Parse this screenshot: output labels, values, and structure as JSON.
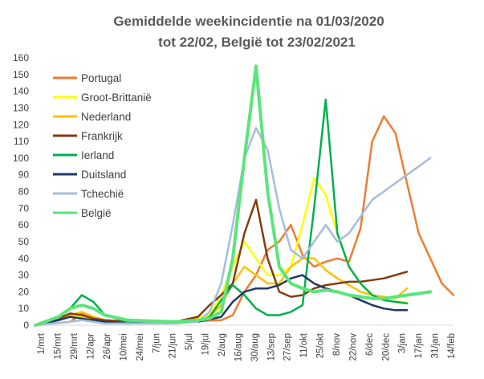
{
  "chart_data": {
    "type": "line",
    "title": [
      "Gemiddelde weekincidentie  na 01/03/2020",
      "tot 22/02, België tot 23/02/2021"
    ],
    "xlabel": "",
    "ylabel": "",
    "ylim": [
      0,
      160
    ],
    "yticks": [
      0,
      10,
      20,
      30,
      40,
      50,
      60,
      70,
      80,
      90,
      100,
      110,
      120,
      130,
      140,
      150,
      160
    ],
    "grid": false,
    "legend_position": "top-left",
    "x_tick_labels": [
      "1/mrt",
      "15/mrt",
      "29/mrt",
      "12/apr",
      "26/apr",
      "10/mei",
      "24/mei",
      "7/jun",
      "21/jun",
      "5/jul",
      "19/jul",
      "2/aug",
      "16/aug",
      "30/aug",
      "13/sep",
      "27/sep",
      "11/okt",
      "25/okt",
      "8/nov",
      "22/nov",
      "6/dec",
      "20/dec",
      "3/jan",
      "17/jan",
      "31/jan",
      "14/feb"
    ],
    "series": [
      {
        "name": "Portugal",
        "color": "#ED7D31",
        "points": [
          [
            0,
            0
          ],
          [
            3,
            2
          ],
          [
            4,
            7
          ],
          [
            5,
            5
          ],
          [
            6,
            3
          ],
          [
            8,
            2
          ],
          [
            12,
            2
          ],
          [
            16,
            3
          ],
          [
            17,
            6
          ],
          [
            18,
            20
          ],
          [
            19,
            30
          ],
          [
            20,
            45
          ],
          [
            21,
            50
          ],
          [
            22,
            60
          ],
          [
            23,
            42
          ],
          [
            24,
            35
          ],
          [
            25,
            38
          ],
          [
            26,
            40
          ],
          [
            27,
            38
          ],
          [
            28,
            58
          ],
          [
            29,
            110
          ],
          [
            30,
            125
          ],
          [
            31,
            115
          ],
          [
            32,
            85
          ],
          [
            33,
            55
          ],
          [
            34,
            40
          ],
          [
            35,
            25
          ],
          [
            36,
            18
          ]
        ]
      },
      {
        "name": "Groot-Brittanië",
        "color": "#FFFF00",
        "points": [
          [
            0,
            0
          ],
          [
            2,
            4
          ],
          [
            3,
            6
          ],
          [
            4,
            5
          ],
          [
            5,
            4
          ],
          [
            6,
            3
          ],
          [
            8,
            2
          ],
          [
            12,
            2
          ],
          [
            15,
            6
          ],
          [
            16,
            18
          ],
          [
            17,
            35
          ],
          [
            18,
            50
          ],
          [
            19,
            40
          ],
          [
            20,
            30
          ],
          [
            21,
            30
          ],
          [
            22,
            35
          ],
          [
            23,
            60
          ],
          [
            24,
            88
          ],
          [
            25,
            78
          ],
          [
            26,
            55
          ],
          [
            27,
            35
          ],
          [
            28,
            25
          ],
          [
            29,
            18
          ],
          [
            30,
            15
          ],
          [
            31,
            14
          ],
          [
            32,
            14
          ]
        ]
      },
      {
        "name": "Nederland",
        "color": "#FFC000",
        "points": [
          [
            0,
            0
          ],
          [
            2,
            4
          ],
          [
            3,
            6
          ],
          [
            4,
            8
          ],
          [
            5,
            5
          ],
          [
            6,
            3
          ],
          [
            8,
            2
          ],
          [
            14,
            2
          ],
          [
            15,
            5
          ],
          [
            16,
            12
          ],
          [
            17,
            25
          ],
          [
            18,
            35
          ],
          [
            19,
            30
          ],
          [
            20,
            25
          ],
          [
            21,
            25
          ],
          [
            22,
            35
          ],
          [
            23,
            40
          ],
          [
            24,
            40
          ],
          [
            25,
            33
          ],
          [
            26,
            28
          ],
          [
            27,
            24
          ],
          [
            28,
            20
          ],
          [
            29,
            18
          ],
          [
            30,
            17
          ],
          [
            31,
            16
          ],
          [
            32,
            22
          ]
        ]
      },
      {
        "name": "Frankrijk",
        "color": "#843C0C",
        "points": [
          [
            0,
            0
          ],
          [
            2,
            4
          ],
          [
            3,
            7
          ],
          [
            4,
            6
          ],
          [
            5,
            4
          ],
          [
            6,
            3
          ],
          [
            8,
            2
          ],
          [
            12,
            2
          ],
          [
            14,
            5
          ],
          [
            15,
            12
          ],
          [
            16,
            18
          ],
          [
            17,
            25
          ],
          [
            18,
            55
          ],
          [
            19,
            75
          ],
          [
            20,
            40
          ],
          [
            21,
            20
          ],
          [
            22,
            17
          ],
          [
            23,
            18
          ],
          [
            24,
            22
          ],
          [
            25,
            24
          ],
          [
            26,
            25
          ],
          [
            27,
            26
          ],
          [
            28,
            26
          ],
          [
            29,
            27
          ],
          [
            30,
            28
          ],
          [
            31,
            30
          ],
          [
            32,
            32
          ]
        ]
      },
      {
        "name": "Ierland",
        "color": "#00B050",
        "points": [
          [
            0,
            0
          ],
          [
            2,
            5
          ],
          [
            3,
            10
          ],
          [
            4,
            18
          ],
          [
            5,
            14
          ],
          [
            6,
            6
          ],
          [
            8,
            2
          ],
          [
            14,
            2
          ],
          [
            15,
            5
          ],
          [
            16,
            15
          ],
          [
            17,
            24
          ],
          [
            18,
            18
          ],
          [
            19,
            10
          ],
          [
            20,
            6
          ],
          [
            21,
            6
          ],
          [
            22,
            8
          ],
          [
            23,
            12
          ],
          [
            24,
            70
          ],
          [
            25,
            135
          ],
          [
            26,
            55
          ],
          [
            27,
            35
          ],
          [
            28,
            25
          ],
          [
            29,
            18
          ],
          [
            30,
            15
          ],
          [
            31,
            14
          ],
          [
            32,
            13
          ]
        ]
      },
      {
        "name": "Duitsland",
        "color": "#203864",
        "points": [
          [
            0,
            0
          ],
          [
            2,
            3
          ],
          [
            3,
            5
          ],
          [
            4,
            4
          ],
          [
            5,
            3
          ],
          [
            6,
            2
          ],
          [
            8,
            1
          ],
          [
            14,
            2
          ],
          [
            16,
            5
          ],
          [
            17,
            14
          ],
          [
            18,
            20
          ],
          [
            19,
            22
          ],
          [
            20,
            22
          ],
          [
            21,
            24
          ],
          [
            22,
            28
          ],
          [
            23,
            30
          ],
          [
            24,
            25
          ],
          [
            25,
            22
          ],
          [
            26,
            20
          ],
          [
            27,
            18
          ],
          [
            28,
            15
          ],
          [
            29,
            12
          ],
          [
            30,
            10
          ],
          [
            31,
            9
          ],
          [
            32,
            9
          ]
        ]
      },
      {
        "name": "Tchechië",
        "color": "#A6BDDB",
        "points": [
          [
            0,
            0
          ],
          [
            3,
            2
          ],
          [
            4,
            3
          ],
          [
            5,
            2
          ],
          [
            6,
            1
          ],
          [
            8,
            1
          ],
          [
            12,
            1
          ],
          [
            14,
            2
          ],
          [
            15,
            8
          ],
          [
            16,
            25
          ],
          [
            17,
            60
          ],
          [
            18,
            100
          ],
          [
            19,
            118
          ],
          [
            20,
            105
          ],
          [
            21,
            70
          ],
          [
            22,
            45
          ],
          [
            23,
            40
          ],
          [
            24,
            50
          ],
          [
            25,
            60
          ],
          [
            26,
            50
          ],
          [
            27,
            55
          ],
          [
            28,
            65
          ],
          [
            29,
            75
          ],
          [
            30,
            80
          ],
          [
            31,
            85
          ],
          [
            32,
            90
          ],
          [
            33,
            95
          ],
          [
            34,
            100
          ]
        ]
      },
      {
        "name": "België",
        "color": "#5BE57A",
        "points": [
          [
            0,
            0
          ],
          [
            2,
            5
          ],
          [
            3,
            10
          ],
          [
            4,
            12
          ],
          [
            5,
            10
          ],
          [
            6,
            6
          ],
          [
            8,
            3
          ],
          [
            12,
            2
          ],
          [
            14,
            3
          ],
          [
            15,
            4
          ],
          [
            16,
            8
          ],
          [
            17,
            40
          ],
          [
            18,
            100
          ],
          [
            19,
            155
          ],
          [
            20,
            80
          ],
          [
            21,
            35
          ],
          [
            22,
            25
          ],
          [
            23,
            22
          ],
          [
            24,
            20
          ],
          [
            25,
            21
          ],
          [
            26,
            20
          ],
          [
            27,
            18
          ],
          [
            28,
            17
          ],
          [
            29,
            16
          ],
          [
            30,
            16
          ],
          [
            31,
            17
          ],
          [
            32,
            18
          ],
          [
            33,
            19
          ],
          [
            34,
            20
          ]
        ]
      }
    ]
  }
}
